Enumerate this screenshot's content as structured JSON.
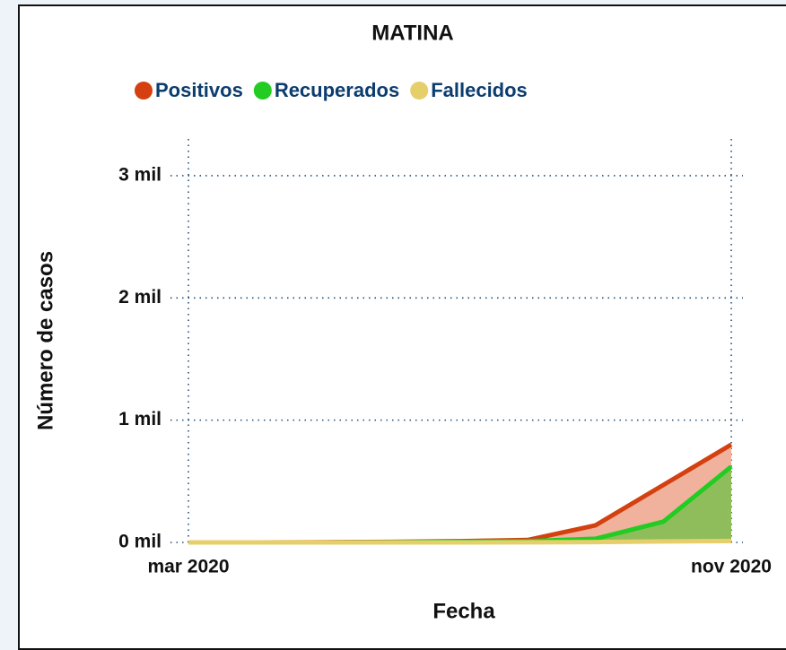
{
  "chart_data": {
    "type": "area",
    "title": "MATINA",
    "y_label": "Número de casos",
    "x_label": "Fecha",
    "x": [
      "mar 2020",
      null,
      null,
      null,
      null,
      null,
      null,
      null,
      "nov 2020"
    ],
    "series": [
      {
        "name": "Positivos",
        "color": "#d4400f",
        "fill": "#f0b29c",
        "values": [
          0,
          0,
          2,
          5,
          10,
          20,
          140,
          470,
          800
        ]
      },
      {
        "name": "Recuperados",
        "color": "#22cc22",
        "fill": "#8fbd5c",
        "values": [
          0,
          0,
          0,
          2,
          5,
          10,
          30,
          170,
          620
        ]
      },
      {
        "name": "Fallecidos",
        "color": "#e6cf6a",
        "fill": "#efe2a8",
        "values": [
          0,
          0,
          0,
          0,
          0,
          1,
          3,
          8,
          12
        ]
      }
    ],
    "ylim": [
      0,
      3300
    ],
    "yticks": [
      {
        "value": 0,
        "label": "0 mil"
      },
      {
        "value": 1000,
        "label": "1 mil"
      },
      {
        "value": 2000,
        "label": "2 mil"
      },
      {
        "value": 3000,
        "label": "3 mil"
      }
    ],
    "grid": true
  }
}
